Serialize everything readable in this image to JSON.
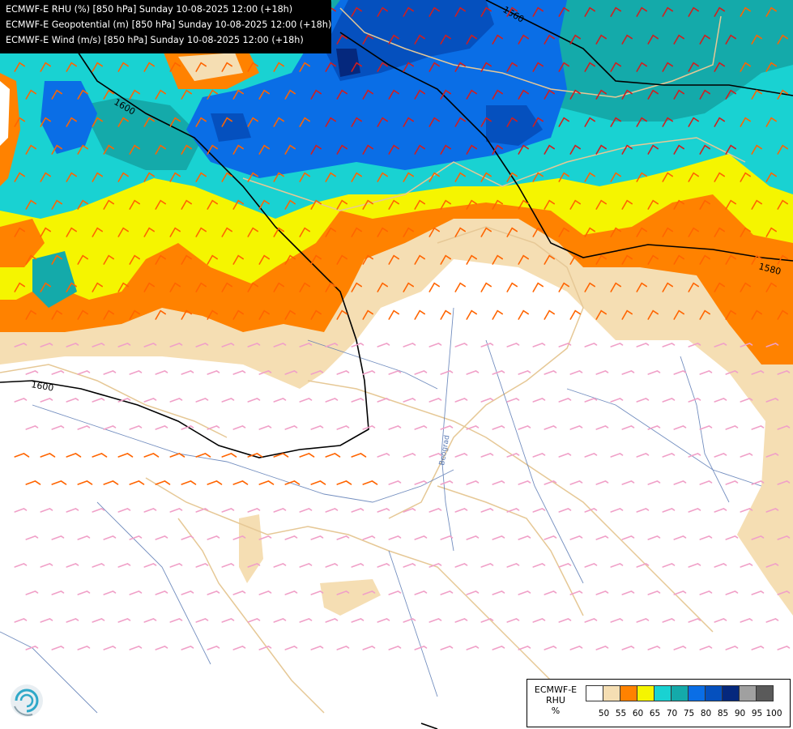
{
  "header": {
    "lines": [
      "ECMWF-E RHU (%) [850 hPa] Sunday 10-08-2025 12:00 (+18h)",
      "ECMWF-E Geopotential (m) [850 hPa] Sunday 10-08-2025 12:00 (+18h)",
      "ECMWF-E Wind (m/s) [850 hPa] Sunday 10-08-2025 12:00 (+18h)"
    ]
  },
  "map": {
    "contour_labels": [
      "1560",
      "1600",
      "1580",
      "1600"
    ],
    "place_label": "Beograd"
  },
  "legend": {
    "title_line1": "ECMWF-E",
    "title_line2": "RHU",
    "unit": "%",
    "ticks": [
      "50",
      "55",
      "60",
      "65",
      "70",
      "75",
      "80",
      "85",
      "90",
      "95",
      "100"
    ],
    "colors": [
      "#ffffff",
      "#f5deb3",
      "#ff8200",
      "#f5f500",
      "#19d2d2",
      "#14aaaa",
      "#0a6ee6",
      "#0550be",
      "#05287d",
      "#a0a0a0",
      "#5a5a5a"
    ]
  },
  "colors": {
    "rhu_55": "#f5deb3",
    "rhu_60": "#ff8200",
    "rhu_65": "#f5f500",
    "rhu_70": "#19d2d2",
    "rhu_75": "#14aaaa",
    "rhu_80": "#0a6ee6",
    "rhu_85": "#0550be",
    "rhu_90": "#05287d",
    "contour": "#000000",
    "borders": "#e6c896",
    "rivers": "#5a7ab4",
    "wind_weak": "#f0a0c8",
    "wind_mid": "#ff6400",
    "wind_strong": "#d21e1e"
  }
}
